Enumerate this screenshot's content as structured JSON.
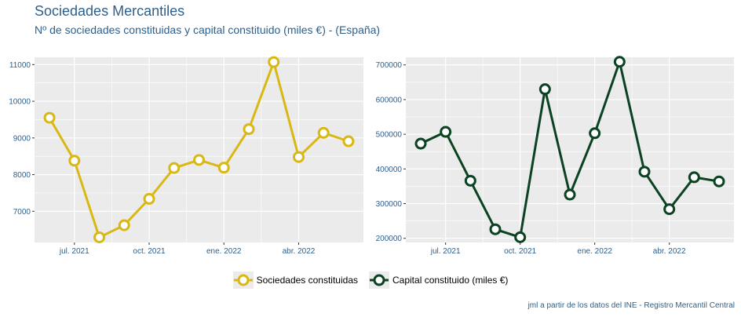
{
  "title": "Sociedades Mercantiles",
  "subtitle": "Nº de sociedades constituidas y capital constituido (miles €) - (España)",
  "source": "jml a partir de los datos del INE - Registro Mercantil Central",
  "colors": {
    "panel_bg": "#ebebeb",
    "grid": "#ffffff",
    "tick_label": "#2e5f8a",
    "series1": "#d9b814",
    "series2": "#0b4222"
  },
  "legend": [
    {
      "label": "Sociedades constituidas",
      "color": "#d9b814"
    },
    {
      "label": "Capital constituido (miles €)",
      "color": "#0b4222"
    }
  ],
  "chart_data": [
    {
      "type": "line",
      "title": "",
      "xlabel": "",
      "ylabel": "",
      "x": [
        "2021-06",
        "2021-07",
        "2021-08",
        "2021-09",
        "2021-10",
        "2021-11",
        "2021-12",
        "2022-01",
        "2022-02",
        "2022-03",
        "2022-04",
        "2022-05",
        "2022-06"
      ],
      "series": [
        {
          "name": "Sociedades constituidas",
          "values": [
            9550,
            8380,
            6290,
            6620,
            7340,
            8180,
            8400,
            8190,
            9240,
            11070,
            8480,
            9140,
            8910
          ]
        }
      ],
      "xticks": [
        {
          "month": "2021-07",
          "label": "jul. 2021"
        },
        {
          "month": "2021-10",
          "label": "oct. 2021"
        },
        {
          "month": "2022-01",
          "label": "ene. 2022"
        },
        {
          "month": "2022-04",
          "label": "abr. 2022"
        }
      ],
      "yticks": [
        7000,
        8000,
        9000,
        10000,
        11000
      ],
      "ylim": [
        6150,
        11200
      ],
      "grid": true
    },
    {
      "type": "line",
      "title": "",
      "xlabel": "",
      "ylabel": "",
      "x": [
        "2021-06",
        "2021-07",
        "2021-08",
        "2021-09",
        "2021-10",
        "2021-11",
        "2021-12",
        "2022-01",
        "2022-02",
        "2022-03",
        "2022-04",
        "2022-05",
        "2022-06"
      ],
      "series": [
        {
          "name": "Capital constituido (miles €)",
          "values": [
            473000,
            507000,
            366000,
            226000,
            203000,
            630000,
            326000,
            503000,
            709000,
            392000,
            284000,
            376000,
            364000
          ]
        }
      ],
      "xticks": [
        {
          "month": "2021-07",
          "label": "jul. 2021"
        },
        {
          "month": "2021-10",
          "label": "oct. 2021"
        },
        {
          "month": "2022-01",
          "label": "ene. 2022"
        },
        {
          "month": "2022-04",
          "label": "abr. 2022"
        }
      ],
      "yticks": [
        200000,
        300000,
        400000,
        500000,
        600000,
        700000
      ],
      "ylim": [
        188000,
        722000
      ],
      "grid": true
    }
  ]
}
